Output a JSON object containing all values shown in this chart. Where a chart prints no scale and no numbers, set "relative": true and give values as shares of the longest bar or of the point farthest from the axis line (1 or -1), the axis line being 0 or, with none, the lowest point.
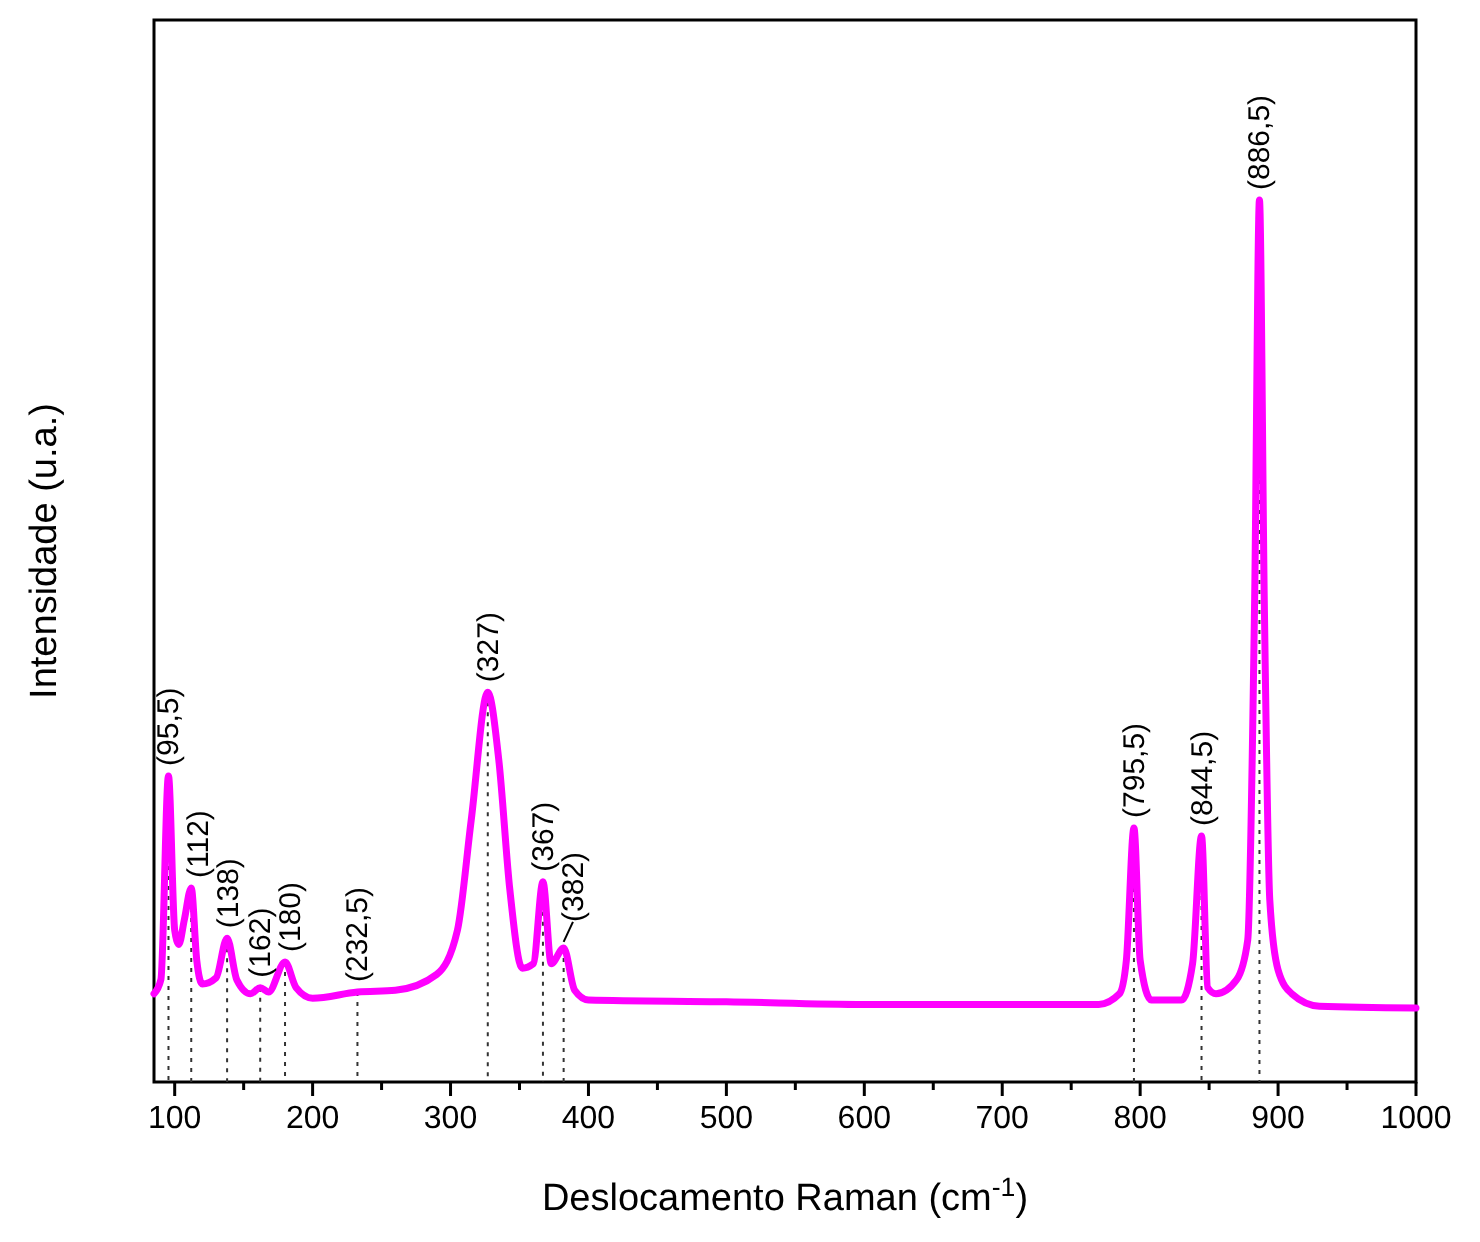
{
  "chart_data": {
    "type": "line",
    "relative": true,
    "xlabel": "Deslocamento Raman (cm$^{-1}$)",
    "ylabel": "Intensidade (u.a.)",
    "xlim": [
      85,
      1000
    ],
    "xticks": [
      100,
      {
        "value": 150,
        "label": null
      },
      200,
      {
        "value": 250,
        "label": null
      },
      300,
      {
        "value": 350,
        "label": null
      },
      400,
      {
        "value": 450,
        "label": null
      },
      500,
      {
        "value": 550,
        "label": null
      },
      600,
      {
        "value": 650,
        "label": null
      },
      700,
      {
        "value": 750,
        "label": null
      },
      800,
      {
        "value": 850,
        "label": null
      },
      900,
      {
        "value": 950,
        "label": null
      },
      1000
    ],
    "grid": false,
    "ref_lines": [
      {
        "axis": "x",
        "value": 95.5,
        "line_style": "dotted"
      },
      {
        "axis": "x",
        "value": 112,
        "line_style": "dotted"
      },
      {
        "axis": "x",
        "value": 138,
        "line_style": "dotted"
      },
      {
        "axis": "x",
        "value": 162,
        "line_style": "dotted"
      },
      {
        "axis": "x",
        "value": 180,
        "line_style": "dotted"
      },
      {
        "axis": "x",
        "value": 232.5,
        "line_style": "dotted"
      },
      {
        "axis": "x",
        "value": 327,
        "line_style": "dotted"
      },
      {
        "axis": "x",
        "value": 367,
        "line_style": "dotted"
      },
      {
        "axis": "x",
        "value": 382,
        "line_style": "dotted"
      },
      {
        "axis": "x",
        "value": 795.5,
        "line_style": "dotted"
      },
      {
        "axis": "x",
        "value": 844.5,
        "line_style": "dotted"
      },
      {
        "axis": "x",
        "value": 886.5,
        "line_style": "dotted"
      }
    ],
    "marker": "none",
    "line_style": "solid",
    "series": [
      {
        "color": "#ff00ff",
        "x": [
          85,
          90,
          95.5,
          100,
          103,
          107,
          112,
          116,
          120,
          130,
          138,
          145,
          155,
          162,
          168,
          180,
          188,
          200,
          232.5,
          260,
          290,
          305,
          315,
          327,
          335,
          343,
          352,
          360,
          367,
          373,
          382,
          390,
          400,
          500,
          600,
          700,
          770,
          785,
          790,
          795.5,
          800,
          808,
          830,
          838,
          844.5,
          849,
          855,
          870,
          878,
          883,
          886.5,
          890,
          894,
          900,
          910,
          930,
          1000
        ],
        "values": [
          0.1,
          0.116,
          0.347,
          0.172,
          0.156,
          0.184,
          0.22,
          0.138,
          0.111,
          0.118,
          0.163,
          0.116,
          0.1,
          0.107,
          0.102,
          0.136,
          0.107,
          0.095,
          0.102,
          0.104,
          0.122,
          0.172,
          0.297,
          0.442,
          0.365,
          0.218,
          0.129,
          0.134,
          0.227,
          0.134,
          0.152,
          0.104,
          0.093,
          0.091,
          0.088,
          0.088,
          0.088,
          0.1,
          0.138,
          0.288,
          0.138,
          0.093,
          0.093,
          0.134,
          0.279,
          0.107,
          0.1,
          0.116,
          0.161,
          0.546,
          1,
          0.546,
          0.206,
          0.127,
          0.1,
          0.086,
          0.084
        ]
      }
    ],
    "annotations": [
      {
        "text": "(95,5)",
        "x": 95.5,
        "y": 0.347
      },
      {
        "text": "(112)",
        "x": 112,
        "y": 0.22
      },
      {
        "text": "(138)",
        "x": 138,
        "y": 0.163
      },
      {
        "text": "(162)",
        "x": 162,
        "y": 0.107
      },
      {
        "text": "(180)",
        "x": 180,
        "y": 0.136
      },
      {
        "text": "(232,5)",
        "x": 232.5,
        "y": 0.102
      },
      {
        "text": "(327)",
        "x": 327,
        "y": 0.442
      },
      {
        "text": "(367)",
        "x": 367,
        "y": 0.227
      },
      {
        "text": "(382)",
        "x": 382,
        "y": 0.152
      },
      {
        "text": "(795,5)",
        "x": 795.5,
        "y": 0.288
      },
      {
        "text": "(844,5)",
        "x": 844.5,
        "y": 0.279
      },
      {
        "text": "(886,5)",
        "x": 886.5,
        "y": 1
      }
    ]
  }
}
